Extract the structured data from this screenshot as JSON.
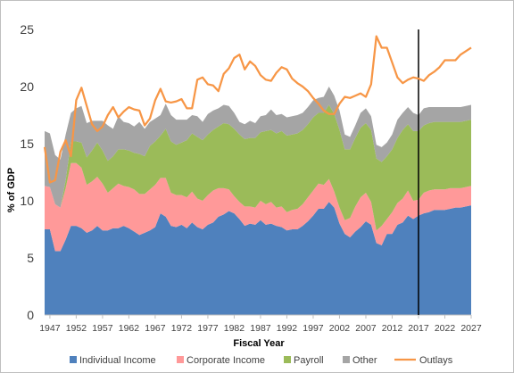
{
  "chart_data": {
    "type": "area",
    "xlabel": "Fiscal Year",
    "ylabel": "% of GDP",
    "ylim": [
      0,
      25
    ],
    "yticks": [
      "0",
      "5",
      "10",
      "15",
      "20",
      "25"
    ],
    "xticks": [
      "1947",
      "1952",
      "1957",
      "1962",
      "1967",
      "1972",
      "1977",
      "1982",
      "1987",
      "1992",
      "1997",
      "2002",
      "2007",
      "2012",
      "2017",
      "2022",
      "2027"
    ],
    "xlim": [
      1946,
      2027
    ],
    "grid": false,
    "legend_position": "bottom",
    "vertical_marker_x": 2017,
    "x": [
      1946,
      1947,
      1948,
      1949,
      1950,
      1951,
      1952,
      1953,
      1954,
      1955,
      1956,
      1957,
      1958,
      1959,
      1960,
      1961,
      1962,
      1963,
      1964,
      1965,
      1966,
      1967,
      1968,
      1969,
      1970,
      1971,
      1972,
      1973,
      1974,
      1975,
      1976,
      1977,
      1978,
      1979,
      1980,
      1981,
      1982,
      1983,
      1984,
      1985,
      1986,
      1987,
      1988,
      1989,
      1990,
      1991,
      1992,
      1993,
      1994,
      1995,
      1996,
      1997,
      1998,
      1999,
      2000,
      2001,
      2002,
      2003,
      2004,
      2005,
      2006,
      2007,
      2008,
      2009,
      2010,
      2011,
      2012,
      2013,
      2014,
      2015,
      2016,
      2017,
      2018,
      2019,
      2020,
      2021,
      2022,
      2023,
      2024,
      2025,
      2026,
      2027
    ],
    "series": [
      {
        "name": "Individual Income",
        "kind": "area",
        "color": "#4f81bd",
        "values": [
          7.5,
          7.5,
          5.6,
          5.6,
          6.6,
          7.8,
          7.8,
          7.6,
          7.2,
          7.4,
          7.8,
          7.4,
          7.4,
          7.6,
          7.6,
          7.8,
          7.6,
          7.3,
          7.0,
          7.2,
          7.4,
          7.7,
          8.9,
          8.6,
          7.8,
          7.7,
          7.9,
          7.6,
          8.1,
          7.7,
          7.5,
          7.9,
          8.1,
          8.6,
          8.8,
          9.1,
          8.9,
          8.4,
          7.8,
          8.0,
          7.9,
          8.3,
          7.9,
          8.0,
          7.8,
          7.7,
          7.4,
          7.5,
          7.5,
          7.8,
          8.2,
          8.7,
          9.3,
          9.3,
          9.9,
          9.4,
          8.0,
          7.1,
          6.8,
          7.3,
          7.7,
          8.2,
          7.9,
          6.3,
          6.1,
          7.1,
          7.1,
          7.9,
          8.1,
          8.7,
          8.4,
          8.7,
          8.9,
          9.0,
          9.2,
          9.2,
          9.2,
          9.3,
          9.4,
          9.4,
          9.5,
          9.6
        ]
      },
      {
        "name": "Corporate Income",
        "kind": "area",
        "color": "#ff9999",
        "values": [
          3.8,
          3.7,
          4.1,
          3.8,
          4.5,
          5.5,
          5.5,
          5.3,
          4.2,
          4.3,
          4.3,
          4.1,
          3.3,
          3.5,
          3.9,
          3.5,
          3.6,
          3.7,
          3.6,
          3.4,
          3.6,
          3.7,
          3.1,
          3.4,
          2.9,
          2.8,
          2.6,
          2.7,
          2.7,
          2.5,
          2.5,
          2.6,
          2.8,
          2.5,
          2.3,
          1.9,
          1.5,
          1.5,
          1.7,
          1.5,
          1.5,
          1.7,
          1.8,
          1.9,
          1.6,
          1.8,
          1.6,
          1.7,
          1.8,
          1.9,
          2.1,
          2.2,
          2.2,
          2.1,
          2.0,
          1.4,
          1.4,
          1.2,
          1.7,
          2.2,
          2.6,
          2.5,
          2.0,
          1.1,
          1.7,
          1.3,
          1.9,
          1.9,
          2.1,
          2.2,
          1.6,
          1.4,
          1.8,
          1.9,
          1.8,
          1.8,
          1.8,
          1.8,
          1.7,
          1.7,
          1.7,
          1.7
        ]
      },
      {
        "name": "Payroll",
        "kind": "area",
        "color": "#9bbb59",
        "values": [
          0.0,
          0.0,
          0.0,
          0.0,
          0.7,
          1.9,
          1.9,
          2.2,
          2.4,
          2.7,
          3.0,
          2.9,
          2.8,
          2.8,
          3.0,
          3.2,
          3.2,
          3.2,
          3.5,
          3.3,
          3.8,
          3.8,
          3.7,
          4.3,
          4.5,
          4.4,
          4.6,
          5.0,
          5.1,
          5.4,
          5.3,
          5.3,
          5.3,
          5.4,
          5.7,
          5.7,
          5.9,
          5.9,
          5.9,
          6.0,
          6.1,
          6.0,
          6.4,
          6.3,
          6.5,
          6.6,
          6.7,
          6.6,
          6.6,
          6.5,
          6.4,
          6.4,
          6.2,
          6.3,
          6.5,
          6.8,
          6.8,
          6.2,
          6.0,
          6.0,
          6.1,
          6.1,
          6.3,
          6.3,
          5.6,
          5.5,
          5.5,
          5.7,
          6.0,
          5.8,
          6.1,
          6.0,
          5.9,
          5.9,
          5.9,
          5.9,
          5.9,
          5.8,
          5.8,
          5.8,
          5.8,
          5.8
        ]
      },
      {
        "name": "Other",
        "kind": "area",
        "color": "#a5a5a5",
        "values": [
          4.8,
          4.7,
          4.3,
          4.2,
          4.0,
          2.5,
          2.9,
          3.2,
          3.0,
          2.6,
          1.9,
          2.6,
          3.1,
          2.4,
          2.9,
          2.4,
          2.4,
          2.3,
          2.8,
          2.4,
          2.1,
          2.0,
          1.8,
          2.2,
          2.3,
          2.2,
          2.0,
          1.8,
          1.6,
          1.8,
          1.6,
          1.8,
          1.7,
          1.6,
          1.6,
          1.6,
          1.4,
          1.1,
          1.3,
          1.5,
          1.3,
          1.4,
          1.4,
          1.8,
          1.6,
          1.5,
          1.6,
          1.6,
          1.6,
          1.5,
          1.5,
          1.5,
          1.3,
          1.4,
          1.6,
          1.6,
          1.7,
          1.3,
          1.1,
          1.1,
          1.3,
          1.3,
          1.2,
          1.2,
          1.3,
          1.2,
          1.3,
          1.6,
          1.5,
          1.5,
          1.6,
          1.4,
          1.5,
          1.4,
          1.3,
          1.3,
          1.3,
          1.3,
          1.3,
          1.3,
          1.3,
          1.3
        ]
      },
      {
        "name": "Outlays",
        "kind": "line",
        "color": "#f79646",
        "values": [
          14.7,
          11.6,
          11.8,
          14.3,
          15.3,
          13.9,
          18.8,
          19.9,
          18.3,
          16.7,
          16.1,
          16.5,
          17.5,
          18.2,
          17.3,
          17.8,
          18.2,
          18.0,
          17.9,
          16.6,
          17.2,
          18.8,
          19.8,
          18.7,
          18.6,
          18.7,
          18.9,
          18.1,
          18.1,
          20.6,
          20.8,
          20.2,
          20.1,
          19.6,
          21.1,
          21.6,
          22.5,
          22.8,
          21.5,
          22.2,
          21.8,
          21.0,
          20.6,
          20.5,
          21.2,
          21.7,
          21.5,
          20.7,
          20.3,
          20.0,
          19.6,
          19.0,
          18.5,
          17.9,
          17.6,
          17.6,
          18.5,
          19.1,
          19.0,
          19.2,
          19.4,
          19.1,
          20.2,
          24.4,
          23.4,
          23.4,
          22.1,
          20.8,
          20.3,
          20.6,
          20.8,
          20.7,
          20.5,
          21.0,
          21.3,
          21.7,
          22.3,
          22.3,
          22.3,
          22.8,
          23.1,
          23.4
        ]
      }
    ]
  },
  "legend": [
    {
      "label": "Individual Income",
      "color": "#4f81bd",
      "kind": "area"
    },
    {
      "label": "Corporate Income",
      "color": "#ff9999",
      "kind": "area"
    },
    {
      "label": "Payroll",
      "color": "#9bbb59",
      "kind": "area"
    },
    {
      "label": "Other",
      "color": "#a5a5a5",
      "kind": "area"
    },
    {
      "label": "Outlays",
      "color": "#f79646",
      "kind": "line"
    }
  ]
}
